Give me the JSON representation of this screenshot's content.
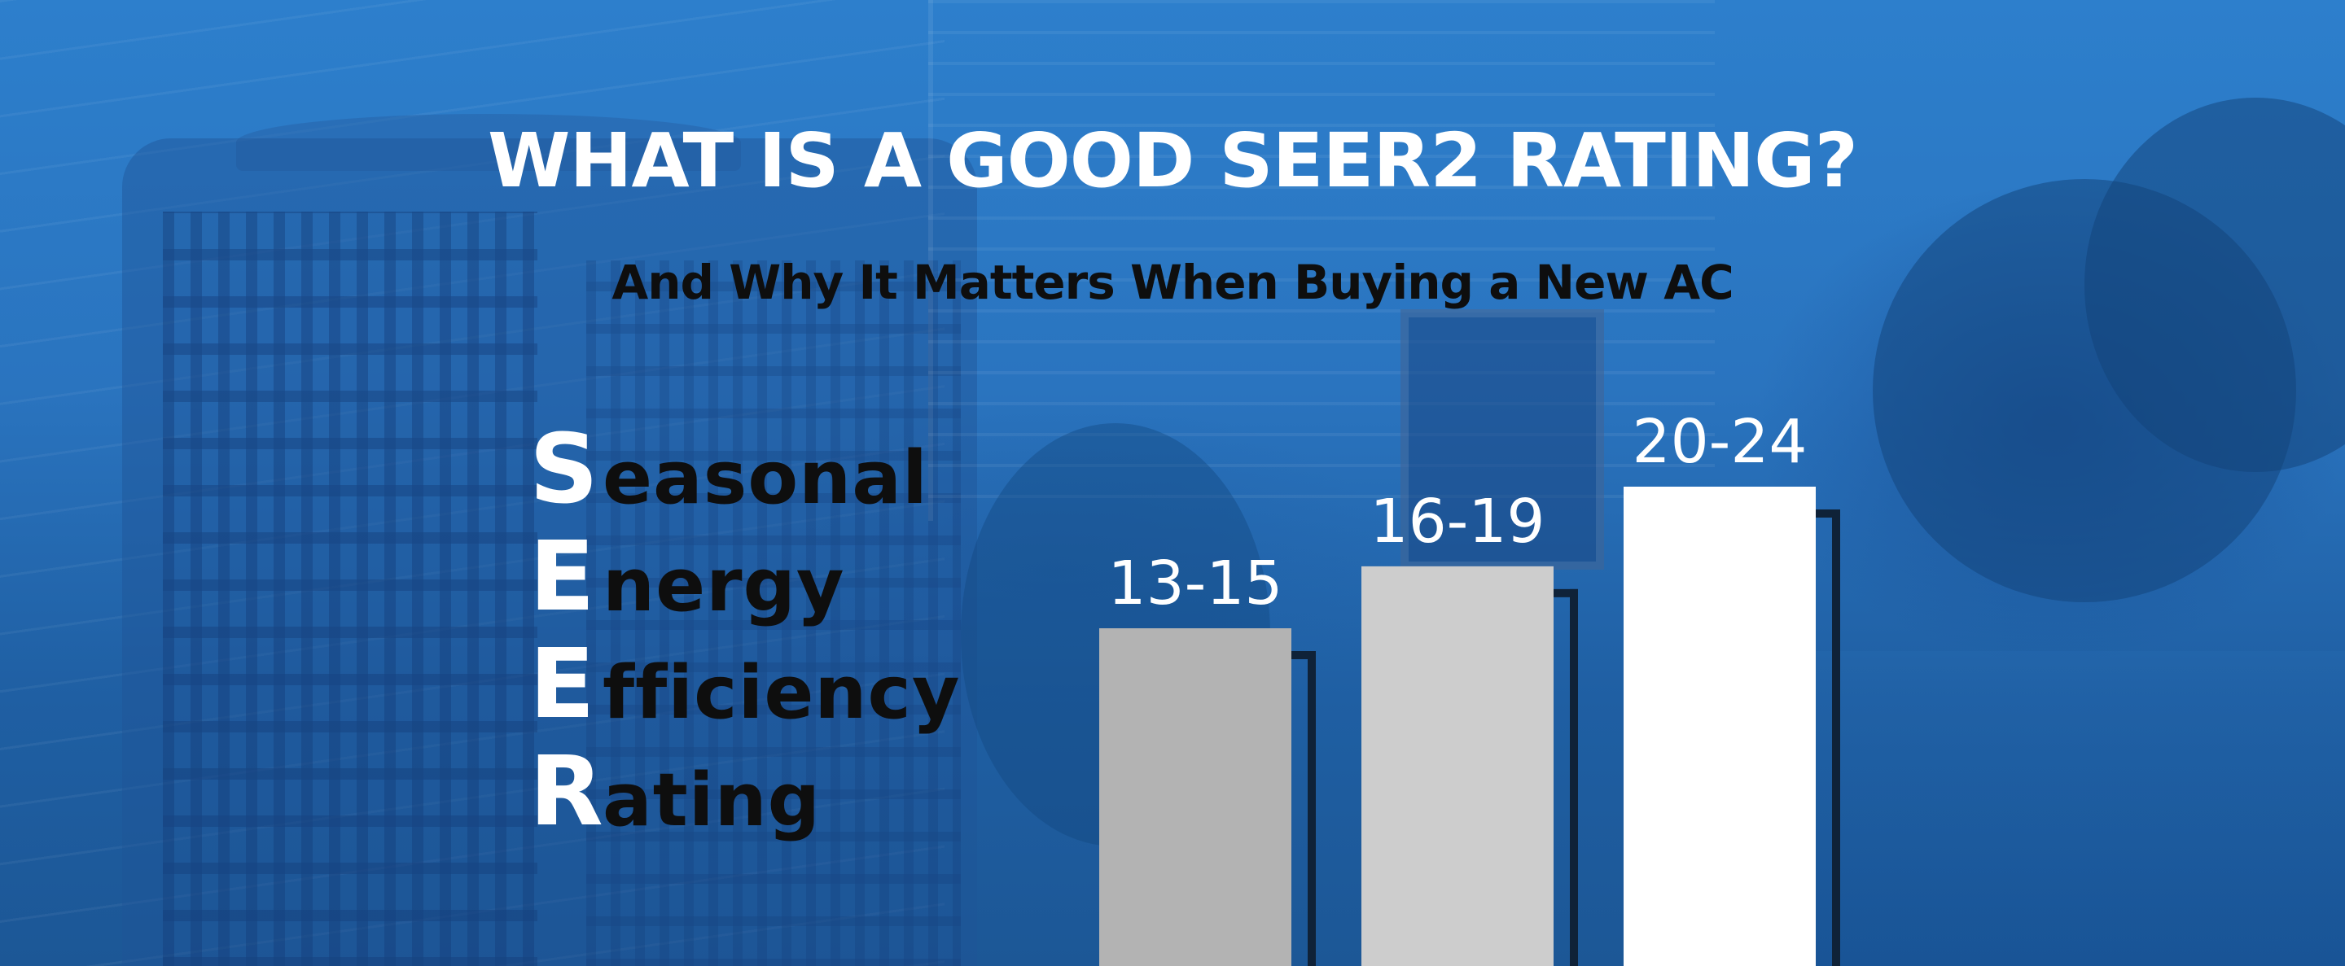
{
  "title": "WHAT IS A GOOD SEER2 RATING?",
  "subtitle": "And Why It Matters When Buying a New AC",
  "acronym": [
    {
      "initial": "S",
      "rest": "easonal"
    },
    {
      "initial": "E",
      "rest": "nergy"
    },
    {
      "initial": "E",
      "rest": "fficiency"
    },
    {
      "initial": "R",
      "rest": "ating"
    }
  ],
  "colors": {
    "background": "#2b78c2",
    "bar_low": "#b3b3b3",
    "bar_mid": "#cdcdcd",
    "bar_high": "#ffffff",
    "bar_shadow": "#0f2238",
    "label_text": "#ffffff",
    "acronym_initial": "#ffffff",
    "acronym_rest": "#0e0e0e"
  },
  "chart_data": {
    "type": "bar",
    "title": "",
    "categories": [
      "13-15",
      "16-19",
      "20-24"
    ],
    "data_labels": [
      "13-15",
      "16-19",
      "20-24"
    ],
    "values": [
      14,
      17.5,
      22
    ],
    "grid": false,
    "legend": "none"
  }
}
